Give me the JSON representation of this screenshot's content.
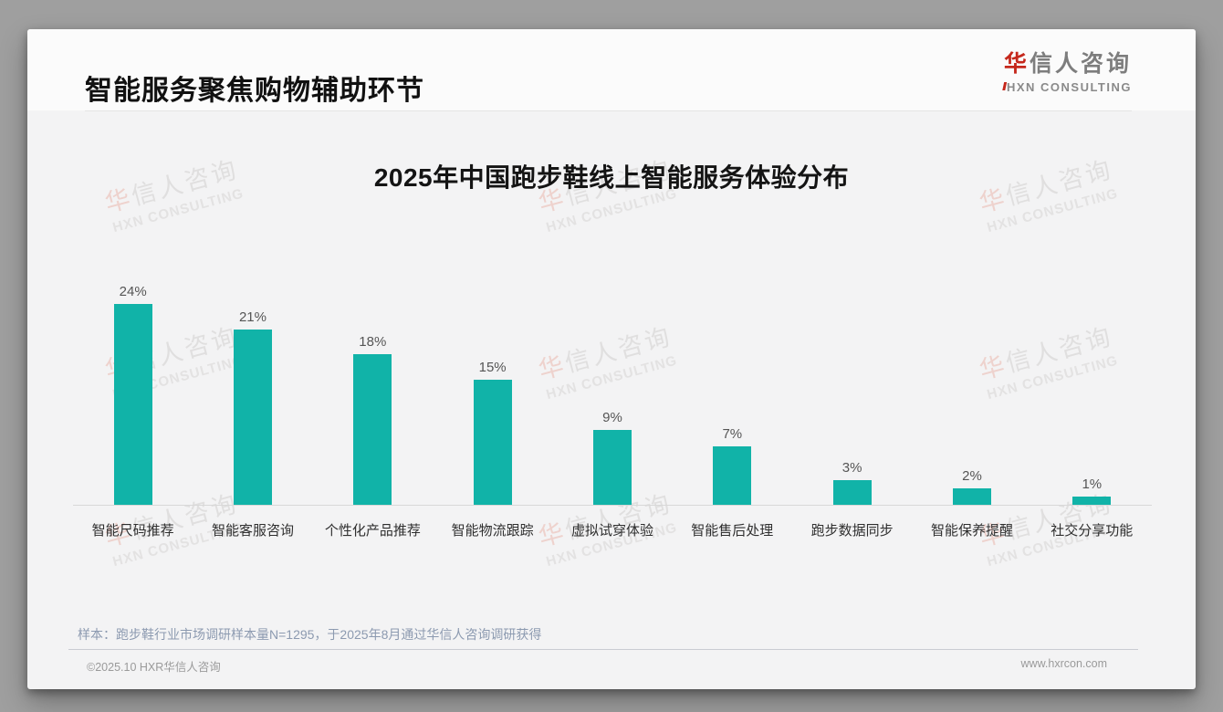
{
  "page": {
    "header": {
      "title": "智能服务聚焦购物辅助环节",
      "logo": {
        "cn_accent": "华",
        "cn_rest": "信人咨询",
        "en": "HXN CONSULTING"
      }
    },
    "note": "样本：跑步鞋行业市场调研样本量N=1295，于2025年8月通过华信人咨询调研获得",
    "footer": {
      "left": "©2025.10 HXR华信人咨询",
      "right": "www.hxrcon.com"
    },
    "watermark": {
      "cn_accent": "华",
      "cn_rest": "信人咨询",
      "en": "HXN CONSULTING"
    }
  },
  "chart_data": {
    "type": "bar",
    "title": "2025年中国跑步鞋线上智能服务体验分布",
    "categories": [
      "智能尺码推荐",
      "智能客服咨询",
      "个性化产品推荐",
      "智能物流跟踪",
      "虚拟试穿体验",
      "智能售后处理",
      "跑步数据同步",
      "智能保养提醒",
      "社交分享功能"
    ],
    "values": [
      24,
      21,
      18,
      15,
      9,
      7,
      3,
      2,
      1
    ],
    "value_labels": [
      "24%",
      "21%",
      "18%",
      "15%",
      "9%",
      "7%",
      "3%",
      "2%",
      "1%"
    ],
    "unit": "%",
    "bar_color": "#11b3a8",
    "xlabel": "",
    "ylabel": "",
    "ylim": [
      0,
      26
    ],
    "grid": false,
    "legend": "none"
  }
}
